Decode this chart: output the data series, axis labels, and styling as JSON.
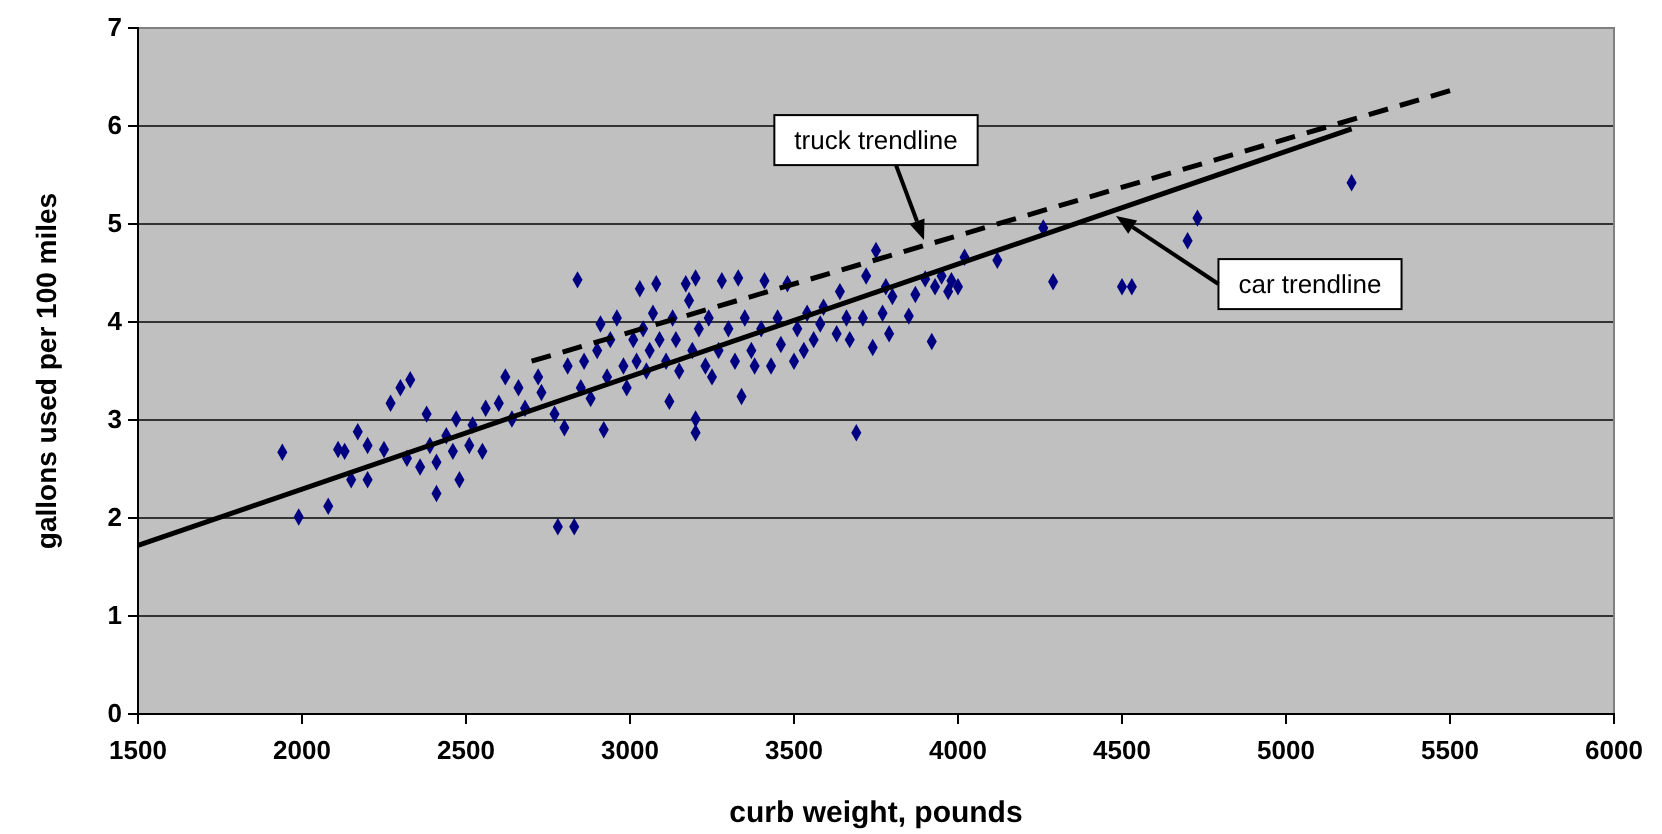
{
  "chart_data": {
    "type": "scatter",
    "xlabel": "curb weight, pounds",
    "ylabel": "gallons used per 100 miles",
    "xlim": [
      1500,
      6000
    ],
    "xticks": [
      1500,
      2000,
      2500,
      3000,
      3500,
      4000,
      4500,
      5000,
      5500,
      6000
    ],
    "ylim": [
      0,
      7
    ],
    "yticks": [
      0,
      1,
      2,
      3,
      4,
      5,
      6,
      7
    ],
    "grid": "y",
    "annotations": [
      "truck trendline",
      "car trendline"
    ],
    "series": [
      {
        "marker": "diamond",
        "color": "#000080",
        "x": [
          1940,
          1990,
          2080,
          2110,
          2130,
          2150,
          2170,
          2200,
          2200,
          2250,
          2270,
          2300,
          2330,
          2320,
          2360,
          2380,
          2390,
          2410,
          2410,
          2440,
          2460,
          2470,
          2480,
          2510,
          2520,
          2550,
          2560,
          2600,
          2620,
          2640,
          2660,
          2680,
          2720,
          2730,
          2770,
          2780,
          2830,
          2800,
          2810,
          2840,
          2850,
          2860,
          2880,
          2900,
          2910,
          2920,
          2930,
          2940,
          2960,
          2980,
          2990,
          3010,
          3020,
          3030,
          3040,
          3050,
          3060,
          3070,
          3080,
          3090,
          3110,
          3120,
          3130,
          3140,
          3150,
          3170,
          3180,
          3190,
          3200,
          3200,
          3200,
          3210,
          3230,
          3240,
          3250,
          3270,
          3280,
          3300,
          3320,
          3330,
          3340,
          3350,
          3370,
          3380,
          3400,
          3410,
          3430,
          3450,
          3460,
          3480,
          3500,
          3510,
          3530,
          3540,
          3560,
          3580,
          3590,
          3630,
          3640,
          3660,
          3670,
          3690,
          3710,
          3720,
          3740,
          3750,
          3770,
          3780,
          3790,
          3800,
          3850,
          3870,
          3900,
          3920,
          3930,
          3950,
          3970,
          3980,
          4000,
          4020,
          4120,
          4260,
          4290,
          4500,
          4530,
          4700,
          4730,
          5200
        ],
        "values": [
          2.67,
          2.01,
          2.12,
          2.7,
          2.68,
          2.39,
          2.88,
          2.74,
          2.39,
          2.7,
          3.17,
          3.33,
          3.41,
          2.61,
          2.52,
          3.06,
          2.74,
          2.25,
          2.57,
          2.84,
          2.68,
          3.01,
          2.39,
          2.74,
          2.95,
          2.68,
          3.12,
          3.17,
          3.44,
          3.01,
          3.33,
          3.12,
          3.44,
          3.28,
          3.06,
          1.91,
          1.91,
          2.92,
          3.55,
          4.43,
          3.33,
          3.6,
          3.22,
          3.71,
          3.98,
          2.9,
          3.44,
          3.82,
          4.04,
          3.55,
          3.33,
          3.82,
          3.6,
          4.34,
          3.93,
          3.5,
          3.71,
          4.09,
          4.39,
          3.82,
          3.6,
          3.19,
          4.04,
          3.82,
          3.5,
          4.39,
          4.22,
          3.71,
          4.45,
          3.01,
          2.87,
          3.93,
          3.55,
          4.04,
          3.44,
          3.71,
          4.42,
          3.93,
          3.6,
          4.45,
          3.24,
          4.04,
          3.71,
          3.55,
          3.93,
          4.42,
          3.55,
          4.04,
          3.77,
          4.39,
          3.6,
          3.93,
          3.71,
          4.09,
          3.82,
          3.98,
          4.15,
          3.88,
          4.31,
          4.04,
          3.82,
          2.87,
          4.04,
          4.47,
          3.74,
          4.73,
          4.09,
          4.36,
          3.88,
          4.26,
          4.06,
          4.28,
          4.44,
          3.8,
          4.36,
          4.47,
          4.31,
          4.42,
          4.36,
          4.66,
          4.63,
          4.96,
          4.41,
          4.36,
          4.36,
          4.83,
          5.06,
          5.42
        ]
      },
      {
        "type": "line",
        "color": "#000000",
        "line_style": "dashed",
        "x": [
          2700,
          5500
        ],
        "values": [
          3.6,
          6.36
        ]
      },
      {
        "type": "line",
        "color": "#000000",
        "line_style": "solid",
        "x": [
          1500,
          5200
        ],
        "values": [
          1.72,
          5.97
        ]
      }
    ]
  }
}
